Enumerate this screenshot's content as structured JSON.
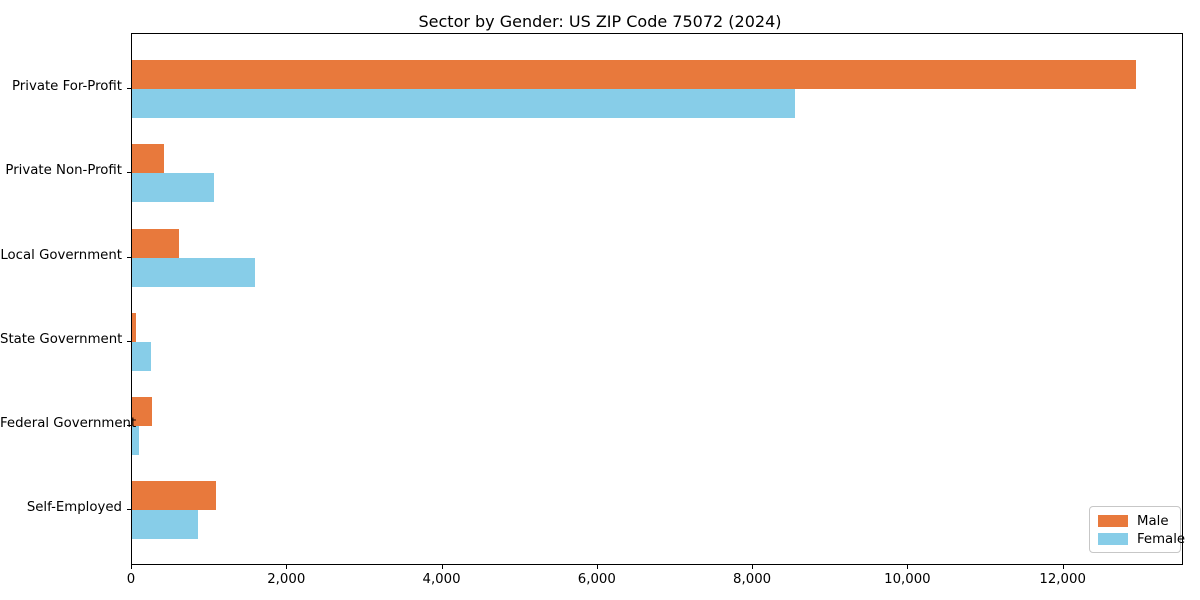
{
  "chart_data": {
    "type": "bar",
    "orientation": "horizontal",
    "title": "Sector by Gender: US ZIP Code 75072 (2024)",
    "categories": [
      "Private For-Profit",
      "Private Non-Profit",
      "Local Government",
      "State Government",
      "Federal Government",
      "Self-Employed"
    ],
    "series": [
      {
        "name": "Male",
        "color": "#E8793C",
        "values": [
          12930,
          410,
          600,
          50,
          260,
          1080
        ]
      },
      {
        "name": "Female",
        "color": "#87CDE8",
        "values": [
          8540,
          1050,
          1590,
          250,
          95,
          850
        ]
      }
    ],
    "xlim": [
      0,
      13550
    ],
    "x_ticks": [
      0,
      2000,
      4000,
      6000,
      8000,
      10000,
      12000
    ],
    "x_tick_labels": [
      "0",
      "2,000",
      "4,000",
      "6,000",
      "8,000",
      "10,000",
      "12,000"
    ],
    "xlabel": "",
    "ylabel": "",
    "grid": false,
    "legend_position": "lower right",
    "frame_color": "#000000",
    "background_color": "#ffffff"
  }
}
